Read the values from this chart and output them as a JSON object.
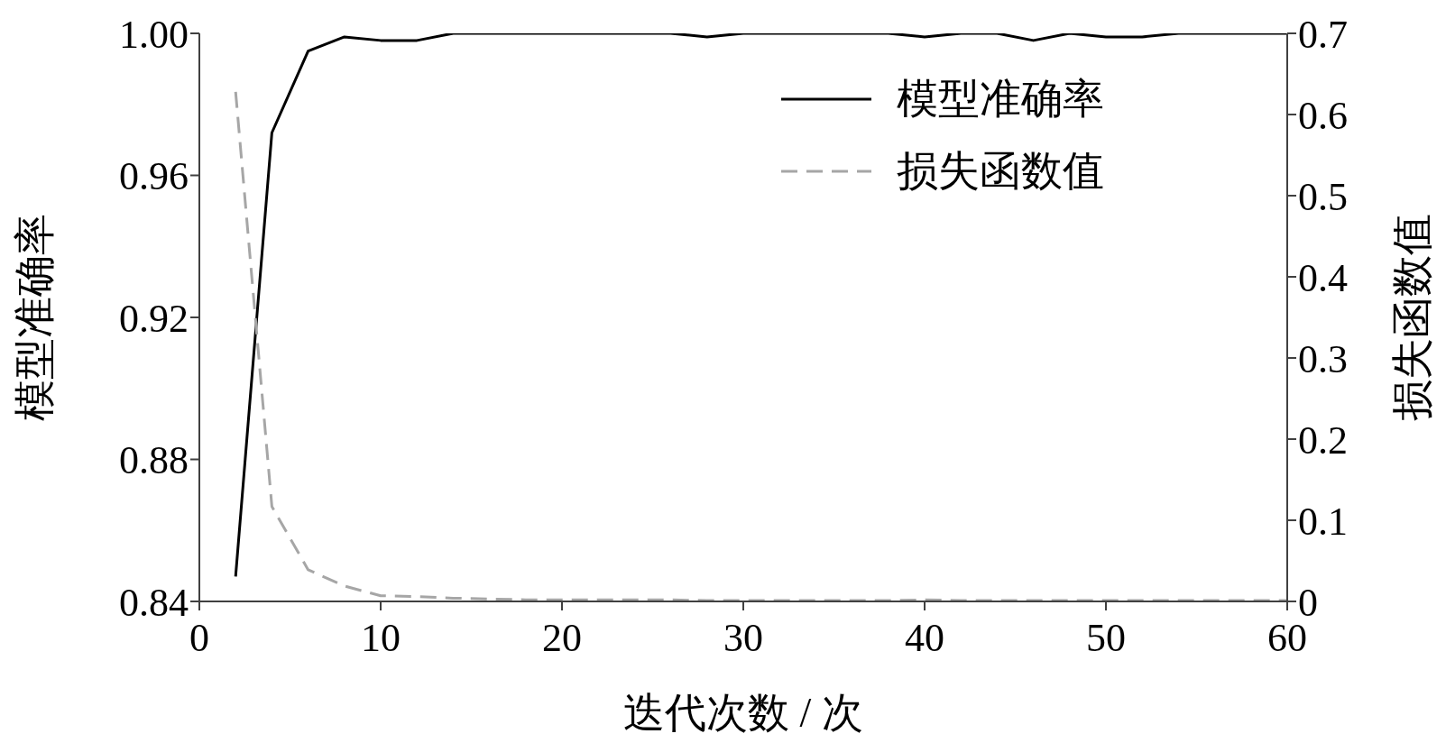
{
  "chart_data": {
    "type": "line",
    "xlabel": "迭代次数 / 次",
    "ylabel": "模型准确率",
    "y2label": "损失函数值",
    "x": [
      2,
      4,
      6,
      8,
      10,
      12,
      14,
      16,
      18,
      20,
      22,
      24,
      26,
      28,
      30,
      32,
      34,
      36,
      38,
      40,
      42,
      44,
      46,
      48,
      50,
      52,
      54,
      56,
      58,
      60
    ],
    "series": [
      {
        "name": "模型准确率",
        "color": "#000000",
        "line_style": "solid",
        "values": [
          0.847,
          0.972,
          0.995,
          0.999,
          0.998,
          0.998,
          1.0,
          1.0,
          1.0,
          1.0,
          1.0,
          1.0,
          1.0,
          0.999,
          1.0,
          1.0,
          1.0,
          1.0,
          1.0,
          0.999,
          1.0,
          1.0,
          0.998,
          1.0,
          0.999,
          0.999,
          1.0,
          1.0,
          1.0,
          1.0
        ]
      },
      {
        "name": "损失函数值",
        "color": "#a6a6a6",
        "line_style": "dashed",
        "axis": "y2",
        "values": [
          0.628,
          0.117,
          0.039,
          0.019,
          0.007,
          0.006,
          0.004,
          0.003,
          0.002,
          0.002,
          0.002,
          0.002,
          0.002,
          0.001,
          0.001,
          0.001,
          0.001,
          0.001,
          0.001,
          0.002,
          0.001,
          0.001,
          0.001,
          0.001,
          0.001,
          0.001,
          0.001,
          0.001,
          0.001,
          0.001
        ]
      }
    ],
    "xlim": [
      0,
      60
    ],
    "xticks": [
      0,
      10,
      20,
      30,
      40,
      50,
      60
    ],
    "ylim": [
      0.84,
      1.0
    ],
    "yticks": [
      {
        "value": 0.84,
        "label": "0.84"
      },
      {
        "value": 0.88,
        "label": "0.88"
      },
      {
        "value": 0.92,
        "label": "0.92"
      },
      {
        "value": 0.96,
        "label": "0.96"
      },
      {
        "value": 1.0,
        "label": "1.00"
      }
    ],
    "y2lim": [
      0,
      0.7
    ],
    "y2ticks": [
      0,
      0.1,
      0.2,
      0.3,
      0.4,
      0.5,
      0.6,
      0.7
    ],
    "grid": false,
    "legend": "top right",
    "marker": "none"
  }
}
